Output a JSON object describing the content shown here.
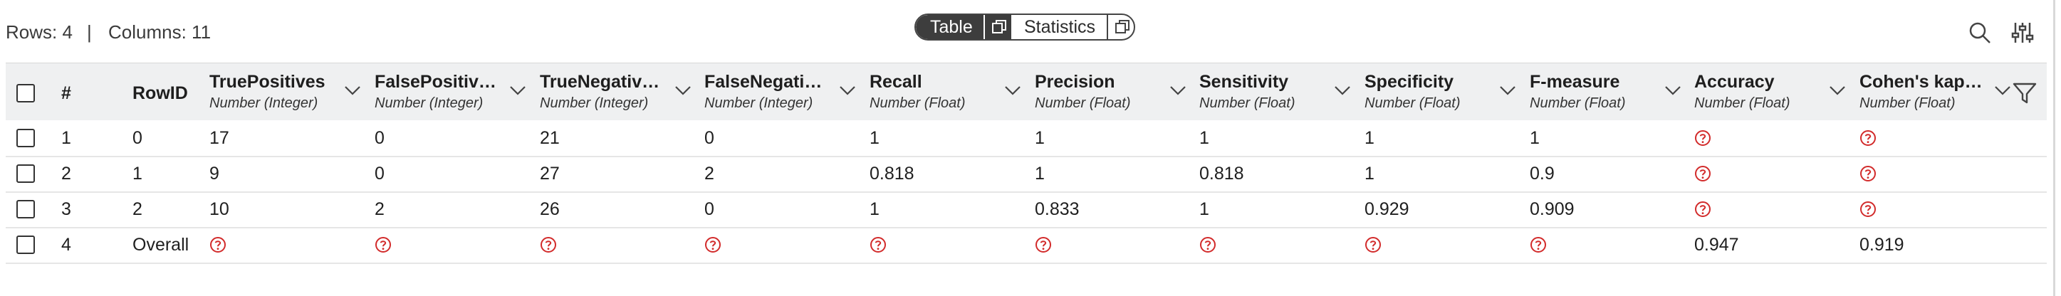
{
  "toolbar": {
    "rows_label": "Rows: 4",
    "separator": "|",
    "columns_label": "Columns: 11",
    "view_toggle": {
      "table_label": "Table",
      "statistics_label": "Statistics",
      "selected": "Table"
    },
    "icons": [
      "search-icon",
      "settings-sliders-icon",
      "open-window-icon",
      "filter-icon",
      "chevron-down-icon",
      "missing-value-icon"
    ]
  },
  "colors": {
    "missing": "#d22b2b",
    "header_bg": "#eff0f1",
    "toggle_active": "#3d3d3d"
  },
  "table": {
    "index_header": "#",
    "rowid_header": "RowID",
    "columns": [
      {
        "name": "TruePositives",
        "type": "Number (Integer)"
      },
      {
        "name": "FalsePositiv…",
        "type": "Number (Integer)"
      },
      {
        "name": "TrueNegativ…",
        "type": "Number (Integer)"
      },
      {
        "name": "FalseNegati…",
        "type": "Number (Integer)"
      },
      {
        "name": "Recall",
        "type": "Number (Float)"
      },
      {
        "name": "Precision",
        "type": "Number (Float)"
      },
      {
        "name": "Sensitivity",
        "type": "Number (Float)"
      },
      {
        "name": "Specificity",
        "type": "Number (Float)"
      },
      {
        "name": "F-measure",
        "type": "Number (Float)"
      },
      {
        "name": "Accuracy",
        "type": "Number (Float)"
      },
      {
        "name": "Cohen's kap…",
        "type": "Number (Float)"
      }
    ],
    "rows": [
      {
        "index": "1",
        "rowid": "0",
        "values": [
          "17",
          "0",
          "21",
          "0",
          "1",
          "1",
          "1",
          "1",
          "1",
          null,
          null
        ]
      },
      {
        "index": "2",
        "rowid": "1",
        "values": [
          "9",
          "0",
          "27",
          "2",
          "0.818",
          "1",
          "0.818",
          "1",
          "0.9",
          null,
          null
        ]
      },
      {
        "index": "3",
        "rowid": "2",
        "values": [
          "10",
          "2",
          "26",
          "0",
          "1",
          "0.833",
          "1",
          "0.929",
          "0.909",
          null,
          null
        ]
      },
      {
        "index": "4",
        "rowid": "Overall",
        "values": [
          null,
          null,
          null,
          null,
          null,
          null,
          null,
          null,
          null,
          "0.947",
          "0.919"
        ]
      }
    ]
  }
}
